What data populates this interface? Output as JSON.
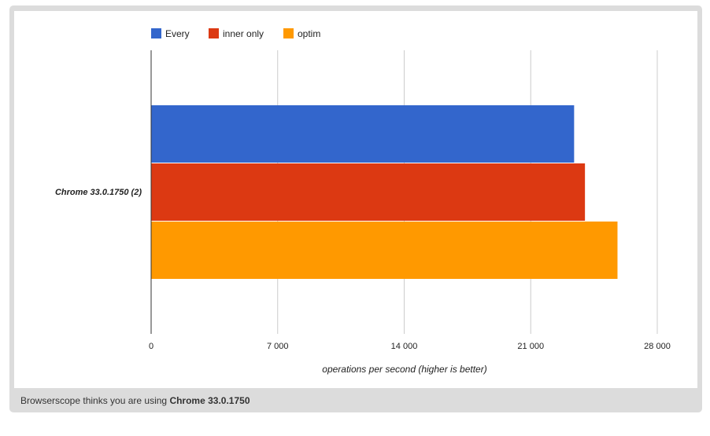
{
  "chart_data": {
    "type": "bar",
    "orientation": "horizontal",
    "categories": [
      "Chrome 33.0.1750 (2)"
    ],
    "series": [
      {
        "name": "Every",
        "color": "#3366cc",
        "values": [
          23400
        ]
      },
      {
        "name": "inner only",
        "color": "#dc3912",
        "values": [
          24000
        ]
      },
      {
        "name": "optim",
        "color": "#ff9900",
        "values": [
          25800
        ]
      }
    ],
    "xlabel": "operations per second (higher is better)",
    "ylabel": "",
    "xlim": [
      0,
      28000
    ],
    "xticks": [
      {
        "value": 0,
        "label": "0"
      },
      {
        "value": 7000,
        "label": "7 000"
      },
      {
        "value": 14000,
        "label": "14 000"
      },
      {
        "value": 21000,
        "label": "21 000"
      },
      {
        "value": 28000,
        "label": "28 000"
      }
    ],
    "grid": true,
    "legend": "top"
  },
  "footer": {
    "prefix": "Browserscope thinks you are using",
    "browser": "Chrome 33.0.1750"
  }
}
